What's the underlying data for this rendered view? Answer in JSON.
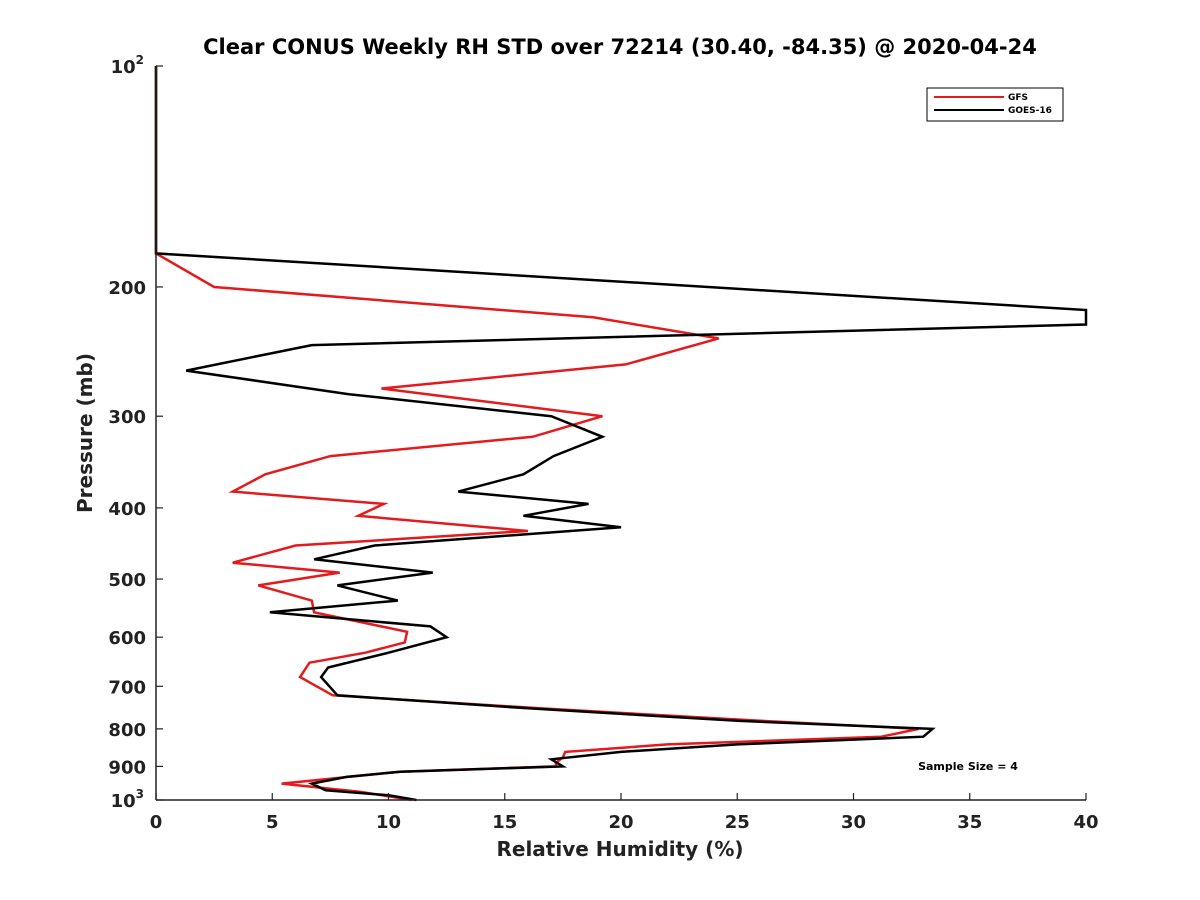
{
  "chart_data": {
    "type": "line",
    "title": "Clear CONUS Weekly RH STD over 72214 (30.40, -84.35) @ 2020-04-24",
    "xlabel": "Relative Humidity (%)",
    "ylabel": "Pressure (mb)",
    "xlim": [
      0,
      40
    ],
    "ylim": [
      100,
      1000
    ],
    "yscale": "log",
    "yreversed": true,
    "x_ticks": [
      "0",
      "5",
      "10",
      "15",
      "20",
      "25",
      "30",
      "35",
      "40"
    ],
    "y_ticks": [
      {
        "value": 100,
        "label": "10",
        "sup": "2"
      },
      {
        "value": 200,
        "label": "200"
      },
      {
        "value": 300,
        "label": "300"
      },
      {
        "value": 400,
        "label": "400"
      },
      {
        "value": 500,
        "label": "500"
      },
      {
        "value": 600,
        "label": "600"
      },
      {
        "value": 700,
        "label": "700"
      },
      {
        "value": 800,
        "label": "800"
      },
      {
        "value": 900,
        "label": "900"
      },
      {
        "value": 1000,
        "label": "10",
        "sup": "3"
      }
    ],
    "legend_position": "top-right",
    "annotation": "Sample Size = 4",
    "series": [
      {
        "name": "GFS",
        "color": "#e41a1c",
        "points": [
          [
            0,
            100
          ],
          [
            0,
            180
          ],
          [
            2.5,
            200
          ],
          [
            18.8,
            220
          ],
          [
            24.2,
            235
          ],
          [
            20.2,
            255
          ],
          [
            9.7,
            275
          ],
          [
            19.2,
            300
          ],
          [
            16.2,
            320
          ],
          [
            7.5,
            340
          ],
          [
            4.7,
            360
          ],
          [
            3.3,
            380
          ],
          [
            9.8,
            395
          ],
          [
            8.7,
            410
          ],
          [
            16,
            430
          ],
          [
            6,
            450
          ],
          [
            3.3,
            475
          ],
          [
            7.9,
            490
          ],
          [
            4.4,
            510
          ],
          [
            6.7,
            535
          ],
          [
            6.8,
            555
          ],
          [
            10.8,
            590
          ],
          [
            10.7,
            610
          ],
          [
            9,
            630
          ],
          [
            6.6,
            650
          ],
          [
            6.2,
            680
          ],
          [
            7.6,
            720
          ],
          [
            16.5,
            750
          ],
          [
            26,
            780
          ],
          [
            32.8,
            800
          ],
          [
            31.2,
            820
          ],
          [
            22,
            840
          ],
          [
            17.6,
            860
          ],
          [
            17.5,
            875
          ],
          [
            17.2,
            890
          ],
          [
            17.2,
            900
          ],
          [
            10.5,
            915
          ],
          [
            5.4,
            950
          ],
          [
            8.8,
            975
          ],
          [
            11,
            1000
          ]
        ]
      },
      {
        "name": "GOES-16",
        "color": "#000000",
        "points": [
          [
            0,
            100
          ],
          [
            0,
            180
          ],
          [
            40,
            215
          ],
          [
            40,
            225
          ],
          [
            6.7,
            240
          ],
          [
            1.3,
            260
          ],
          [
            8.3,
            280
          ],
          [
            17,
            300
          ],
          [
            19.2,
            320
          ],
          [
            17.1,
            340
          ],
          [
            15.8,
            360
          ],
          [
            13,
            380
          ],
          [
            18.6,
            395
          ],
          [
            15.8,
            410
          ],
          [
            20,
            425
          ],
          [
            9.4,
            450
          ],
          [
            6.8,
            470
          ],
          [
            11.9,
            490
          ],
          [
            7.8,
            510
          ],
          [
            10.4,
            535
          ],
          [
            4.9,
            555
          ],
          [
            11.8,
            580
          ],
          [
            12.5,
            600
          ],
          [
            10,
            630
          ],
          [
            7.4,
            660
          ],
          [
            7.1,
            680
          ],
          [
            7.8,
            720
          ],
          [
            16,
            750
          ],
          [
            25,
            780
          ],
          [
            33.4,
            800
          ],
          [
            33,
            820
          ],
          [
            25,
            840
          ],
          [
            20,
            860
          ],
          [
            17,
            880
          ],
          [
            17.5,
            900
          ],
          [
            10.5,
            915
          ],
          [
            8.2,
            930
          ],
          [
            6.7,
            950
          ],
          [
            7.3,
            970
          ],
          [
            10,
            985
          ],
          [
            11.2,
            1000
          ]
        ]
      }
    ]
  }
}
